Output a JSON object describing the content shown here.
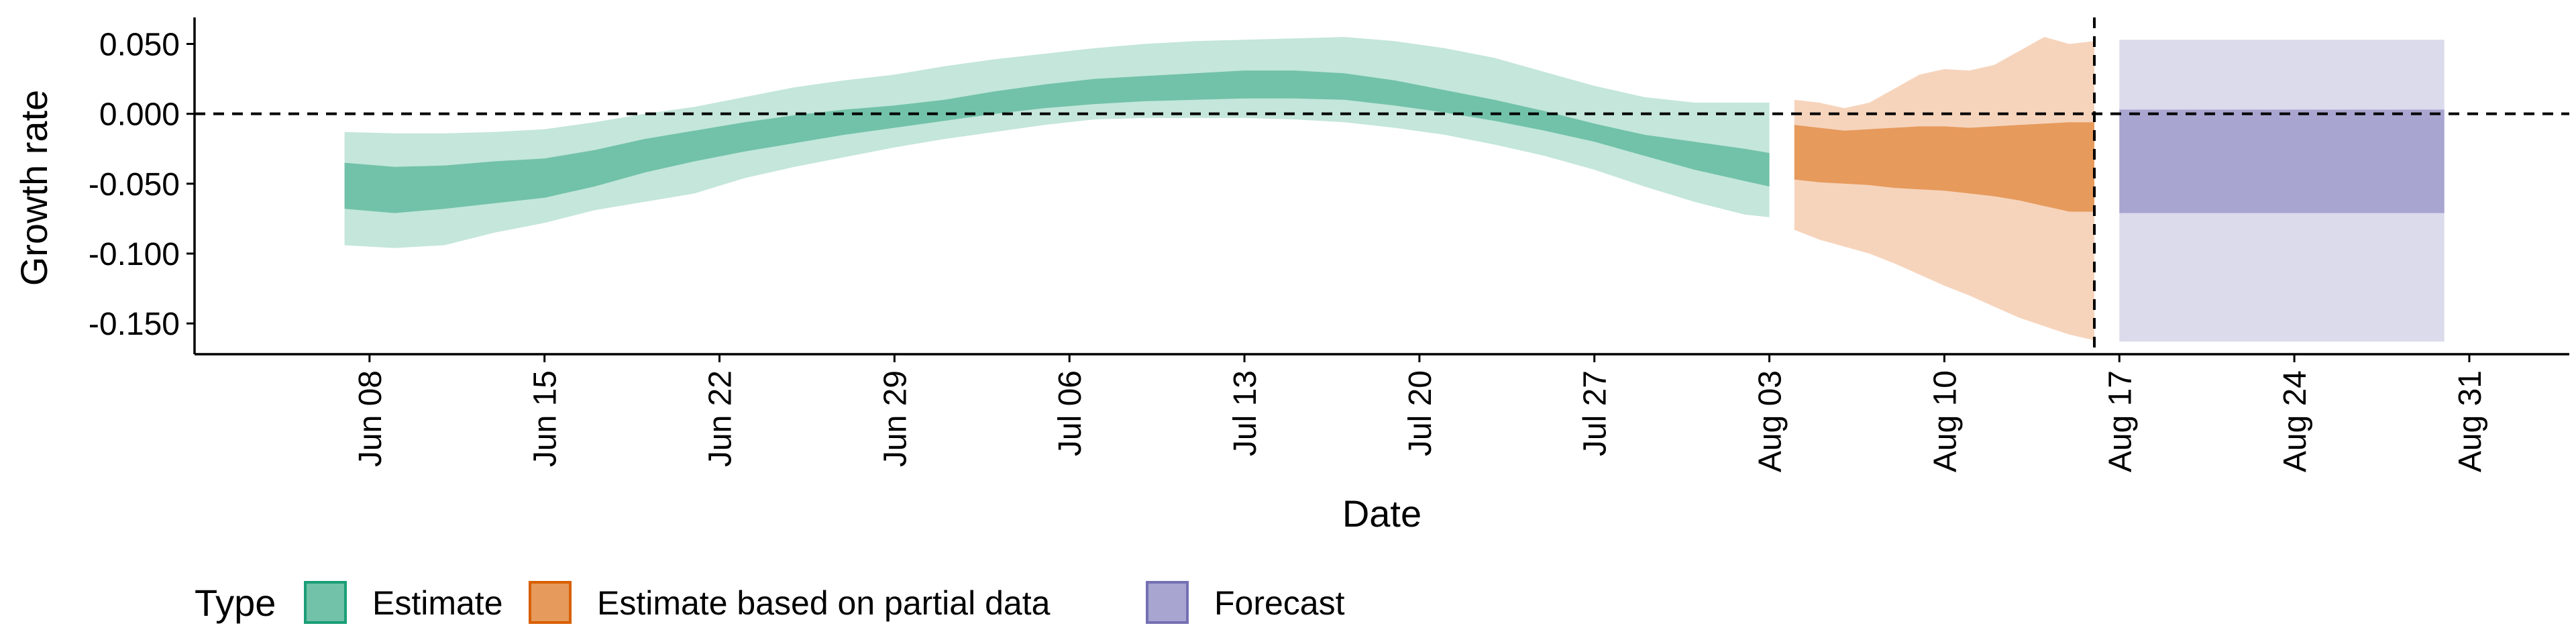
{
  "chart_data": {
    "type": "area",
    "xlabel": "Date",
    "ylabel": "Growth rate",
    "ylim": [
      -0.172,
      0.068
    ],
    "xlim": [
      "2020-06-01",
      "2020-09-04"
    ],
    "y_ticks": [
      0.05,
      0.0,
      -0.05,
      -0.1,
      -0.15
    ],
    "y_tick_labels": [
      "0.050",
      "0.000",
      "-0.050",
      "-0.100",
      "-0.150"
    ],
    "x_ticks": [
      "2020-06-08",
      "2020-06-15",
      "2020-06-22",
      "2020-06-29",
      "2020-07-06",
      "2020-07-13",
      "2020-07-20",
      "2020-07-27",
      "2020-08-03",
      "2020-08-10",
      "2020-08-17",
      "2020-08-24",
      "2020-08-31"
    ],
    "x_tick_labels": [
      "Jun 08",
      "Jun 15",
      "Jun 22",
      "Jun 29",
      "Jul 06",
      "Jul 13",
      "Jul 20",
      "Jul 27",
      "Aug 03",
      "Aug 10",
      "Aug 17",
      "Aug 24",
      "Aug 31"
    ],
    "hline": 0.0,
    "vline": "2020-08-16",
    "grid": false,
    "legend": {
      "title": "Type",
      "position": "bottom-left",
      "entries": [
        {
          "label": "Estimate",
          "fill": "#71c2a8",
          "border": "#1b9e77"
        },
        {
          "label": "Estimate based on partial data",
          "fill": "#e69a5c",
          "border": "#d95f02"
        },
        {
          "label": "Forecast",
          "fill": "#a8a5d0",
          "border": "#7570b3"
        }
      ]
    },
    "series": [
      {
        "name": "Estimate",
        "inner_fill": "#71c2a8",
        "outer_fill": "#c4e6db",
        "x": [
          "2020-06-07",
          "2020-06-09",
          "2020-06-11",
          "2020-06-13",
          "2020-06-15",
          "2020-06-17",
          "2020-06-19",
          "2020-06-21",
          "2020-06-23",
          "2020-06-25",
          "2020-06-27",
          "2020-06-29",
          "2020-07-01",
          "2020-07-03",
          "2020-07-05",
          "2020-07-07",
          "2020-07-09",
          "2020-07-11",
          "2020-07-13",
          "2020-07-15",
          "2020-07-17",
          "2020-07-19",
          "2020-07-21",
          "2020-07-23",
          "2020-07-25",
          "2020-07-27",
          "2020-07-29",
          "2020-07-31",
          "2020-08-02",
          "2020-08-03"
        ],
        "outer_upper": [
          -0.013,
          -0.014,
          -0.014,
          -0.013,
          -0.011,
          -0.006,
          0.0,
          0.005,
          0.012,
          0.019,
          0.024,
          0.028,
          0.034,
          0.039,
          0.043,
          0.047,
          0.05,
          0.052,
          0.053,
          0.054,
          0.055,
          0.052,
          0.047,
          0.04,
          0.03,
          0.02,
          0.012,
          0.008,
          0.008,
          0.008
        ],
        "inner_upper": [
          -0.035,
          -0.038,
          -0.037,
          -0.034,
          -0.032,
          -0.026,
          -0.018,
          -0.012,
          -0.006,
          -0.001,
          0.003,
          0.006,
          0.01,
          0.016,
          0.021,
          0.025,
          0.027,
          0.029,
          0.031,
          0.031,
          0.029,
          0.024,
          0.017,
          0.01,
          0.002,
          -0.007,
          -0.015,
          -0.02,
          -0.025,
          -0.028
        ],
        "inner_lower": [
          -0.068,
          -0.071,
          -0.068,
          -0.064,
          -0.06,
          -0.052,
          -0.042,
          -0.034,
          -0.027,
          -0.021,
          -0.015,
          -0.01,
          -0.005,
          0.0,
          0.004,
          0.007,
          0.009,
          0.01,
          0.011,
          0.011,
          0.01,
          0.006,
          0.001,
          -0.005,
          -0.012,
          -0.02,
          -0.03,
          -0.04,
          -0.048,
          -0.052
        ],
        "outer_lower": [
          -0.094,
          -0.096,
          -0.094,
          -0.085,
          -0.078,
          -0.069,
          -0.063,
          -0.057,
          -0.046,
          -0.038,
          -0.031,
          -0.024,
          -0.018,
          -0.013,
          -0.008,
          -0.004,
          -0.003,
          -0.003,
          -0.003,
          -0.004,
          -0.006,
          -0.01,
          -0.015,
          -0.022,
          -0.03,
          -0.04,
          -0.052,
          -0.063,
          -0.072,
          -0.074
        ]
      },
      {
        "name": "Estimate based on partial data",
        "inner_fill": "#e69a5c",
        "outer_fill": "#f6d4bc",
        "x": [
          "2020-08-04",
          "2020-08-05",
          "2020-08-06",
          "2020-08-07",
          "2020-08-08",
          "2020-08-09",
          "2020-08-10",
          "2020-08-11",
          "2020-08-12",
          "2020-08-13",
          "2020-08-14",
          "2020-08-15",
          "2020-08-16"
        ],
        "outer_upper": [
          0.01,
          0.008,
          0.004,
          0.008,
          0.018,
          0.028,
          0.032,
          0.031,
          0.035,
          0.045,
          0.055,
          0.05,
          0.052
        ],
        "inner_upper": [
          -0.008,
          -0.01,
          -0.012,
          -0.011,
          -0.01,
          -0.009,
          -0.009,
          -0.01,
          -0.009,
          -0.008,
          -0.007,
          -0.006,
          -0.006
        ],
        "inner_lower": [
          -0.047,
          -0.049,
          -0.05,
          -0.051,
          -0.053,
          -0.054,
          -0.055,
          -0.057,
          -0.059,
          -0.062,
          -0.066,
          -0.07,
          -0.07
        ],
        "outer_lower": [
          -0.083,
          -0.09,
          -0.095,
          -0.1,
          -0.107,
          -0.115,
          -0.123,
          -0.13,
          -0.138,
          -0.146,
          -0.152,
          -0.158,
          -0.162
        ]
      },
      {
        "name": "Forecast",
        "inner_fill": "#a8a5d0",
        "outer_fill": "#dcdbec",
        "x": [
          "2020-08-17",
          "2020-08-30"
        ],
        "outer_upper": [
          0.053,
          0.053
        ],
        "inner_upper": [
          0.003,
          0.003
        ],
        "inner_lower": [
          -0.071,
          -0.071
        ],
        "outer_lower": [
          -0.163,
          -0.163
        ]
      }
    ]
  }
}
